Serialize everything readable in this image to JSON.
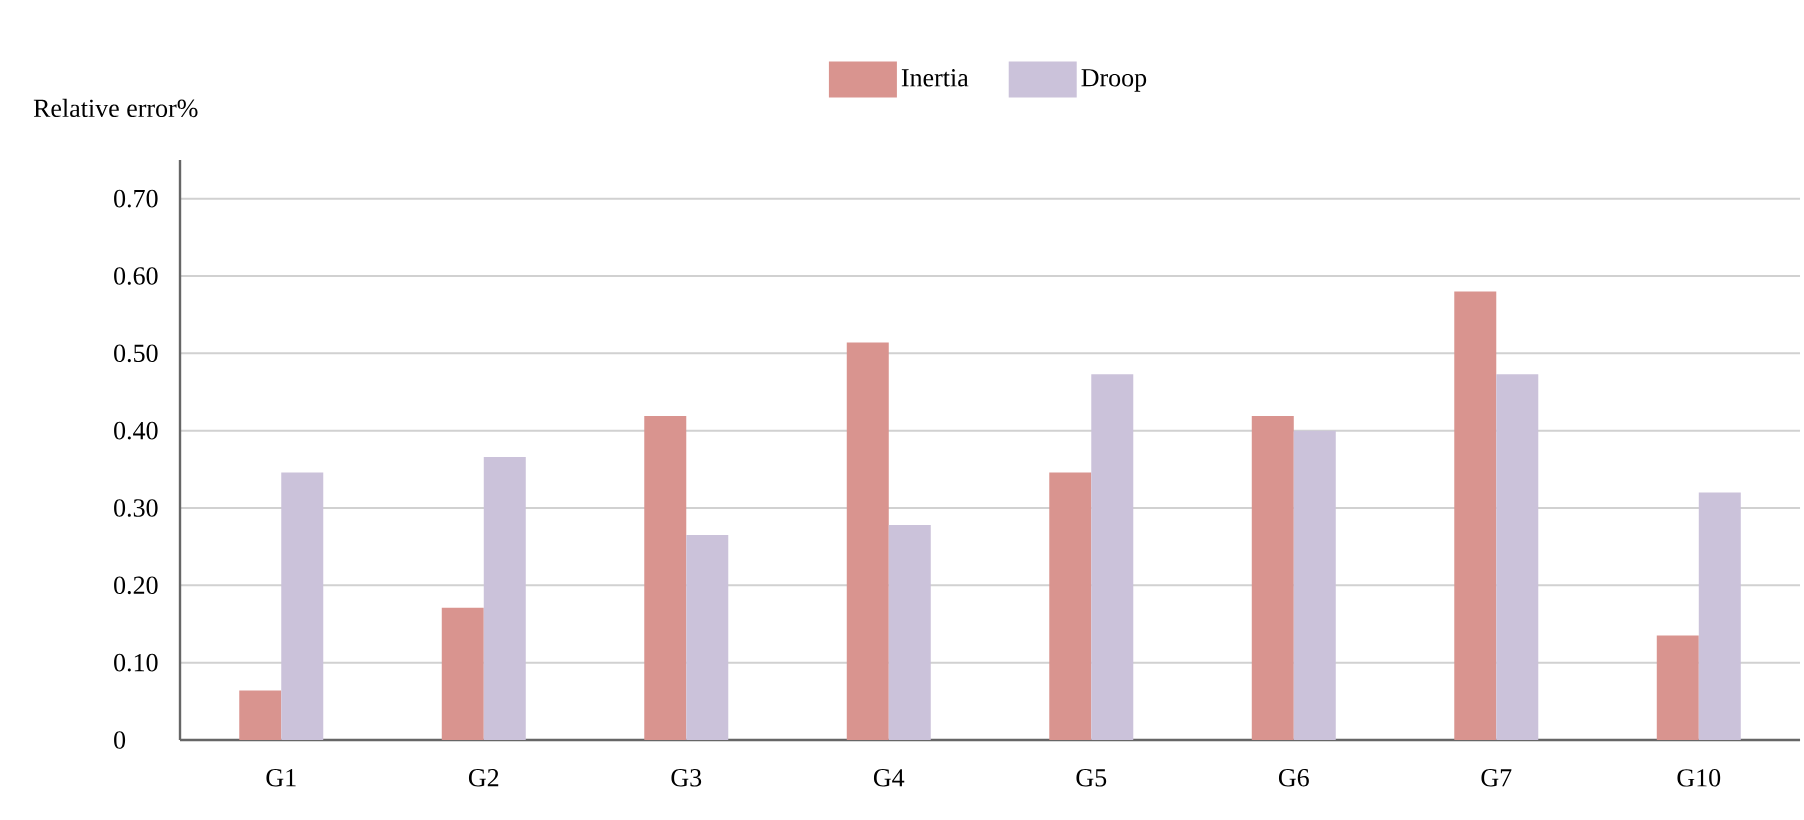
{
  "chart_data": {
    "type": "bar",
    "ylabel": "Relative error%",
    "categories": [
      "G1",
      "G2",
      "G3",
      "G4",
      "G5",
      "G6",
      "G7",
      "G10"
    ],
    "series": [
      {
        "name": "Inertia",
        "color": "#d9948f",
        "values": [
          0.064,
          0.171,
          0.419,
          0.514,
          0.346,
          0.419,
          0.58,
          0.135
        ]
      },
      {
        "name": "Droop",
        "color": "#cbc2da",
        "values": [
          0.346,
          0.366,
          0.265,
          0.278,
          0.473,
          0.4,
          0.473,
          0.32
        ]
      }
    ],
    "ylim": [
      0,
      0.75
    ],
    "yticks": [
      0,
      {
        "value": 0.1,
        "label": "0.10"
      },
      {
        "value": 0.2,
        "label": "0.20"
      },
      {
        "value": 0.3,
        "label": "0.30"
      },
      {
        "value": 0.4,
        "label": "0.40"
      },
      {
        "value": 0.5,
        "label": "0.50"
      },
      {
        "value": 0.6,
        "label": "0.60"
      },
      {
        "value": 0.7,
        "label": "0.70"
      }
    ],
    "grid": "y",
    "legend": "top"
  }
}
